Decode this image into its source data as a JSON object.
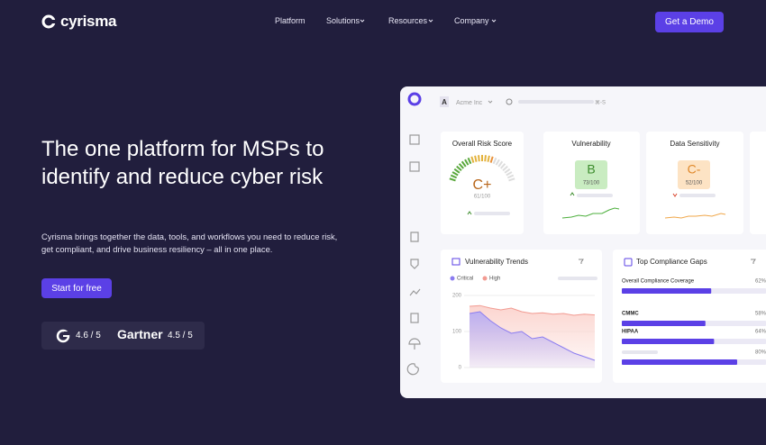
{
  "nav": {
    "logo": "cyrisma",
    "links": [
      "Platform",
      "Solutions",
      "Resources",
      "Company"
    ],
    "cta": "Get a Demo"
  },
  "hero": {
    "title": "The one platform for MSPs to identify and reduce cyber risk",
    "description": "Cyrisma brings together the data, tools, and workflows you need to reduce risk, get compliant, and drive business resiliency – all in one place.",
    "cta": "Start for free",
    "ratings": [
      {
        "score": "4.6 / 5"
      },
      {
        "brand": "Gartner",
        "score": "4.5 / 5"
      }
    ]
  },
  "dashboard": {
    "org": "Acme Inc",
    "shortcut": "⌘-S",
    "cards": [
      {
        "title": "Overall Risk Score",
        "grade": "C+",
        "score": "61/100"
      },
      {
        "title": "Vulnerability",
        "grade": "B",
        "score": "73/100"
      },
      {
        "title": "Data Sensitivity",
        "grade": "C-",
        "score": "52/100"
      }
    ],
    "trends": {
      "title": "Vulnerability Trends",
      "ylim": [
        0,
        200
      ],
      "yticks": [
        0,
        100,
        200
      ],
      "series": [
        {
          "name": "Critical",
          "color": "#8b7cf0",
          "values": [
            150,
            155,
            130,
            110,
            95,
            100,
            80,
            85,
            70,
            55,
            40,
            30,
            20
          ]
        },
        {
          "name": "High",
          "color": "#f29b92",
          "values": [
            170,
            172,
            165,
            160,
            165,
            155,
            150,
            152,
            148,
            150,
            145,
            148,
            146
          ]
        }
      ]
    },
    "compliance": {
      "title": "Top Compliance Gaps",
      "items": [
        {
          "name": "Overall Compliance Coverage",
          "value": 62,
          "value_label": "62%"
        },
        {
          "name": "CMMC",
          "value": 58,
          "value_label": "58%"
        },
        {
          "name": "HIPAA",
          "value": 64,
          "value_label": "64%"
        },
        {
          "name": null,
          "value": 80,
          "value_label": "80%"
        }
      ]
    }
  }
}
